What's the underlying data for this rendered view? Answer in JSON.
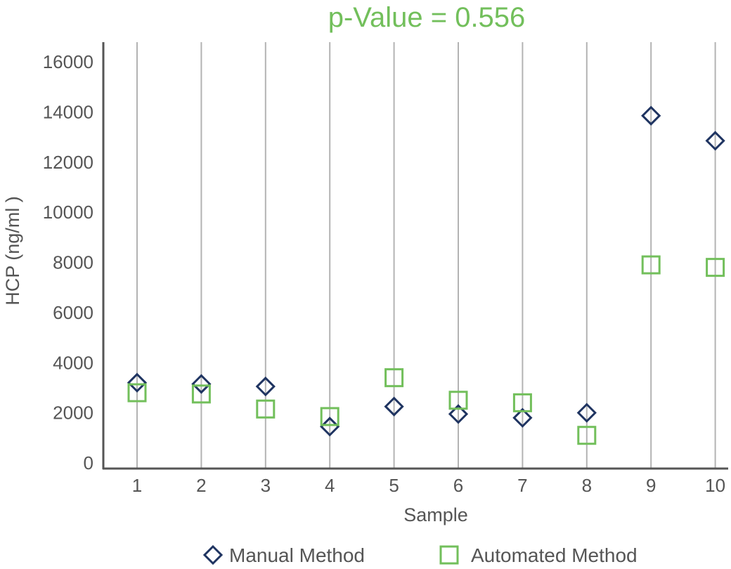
{
  "chart_data": {
    "type": "scatter",
    "title": "p-Value = 0.556",
    "xlabel": "Sample",
    "ylabel": "HCP (ng/ml )",
    "categories": [
      "1",
      "2",
      "3",
      "4",
      "5",
      "6",
      "7",
      "8",
      "9",
      "10"
    ],
    "y_ticks": [
      "0",
      "2000",
      "4000",
      "6000",
      "8000",
      "10000",
      "12000",
      "14000",
      "16000"
    ],
    "ylim": [
      0,
      17000
    ],
    "grid": "vertical",
    "legend_position": "bottom",
    "series": [
      {
        "name": "Manual Method",
        "marker": "diamond",
        "color": "#1f3461",
        "values": [
          3200,
          3150,
          3050,
          1450,
          2250,
          1950,
          1800,
          2000,
          13850,
          12850
        ]
      },
      {
        "name": "Automated Method",
        "marker": "square",
        "color": "#72bf5b",
        "values": [
          2800,
          2750,
          2150,
          1850,
          3400,
          2500,
          2400,
          1100,
          7900,
          7800
        ]
      }
    ],
    "colors": {
      "title": "#72bf5b",
      "axis": "#555555",
      "grid": "#b3b3b3"
    }
  }
}
